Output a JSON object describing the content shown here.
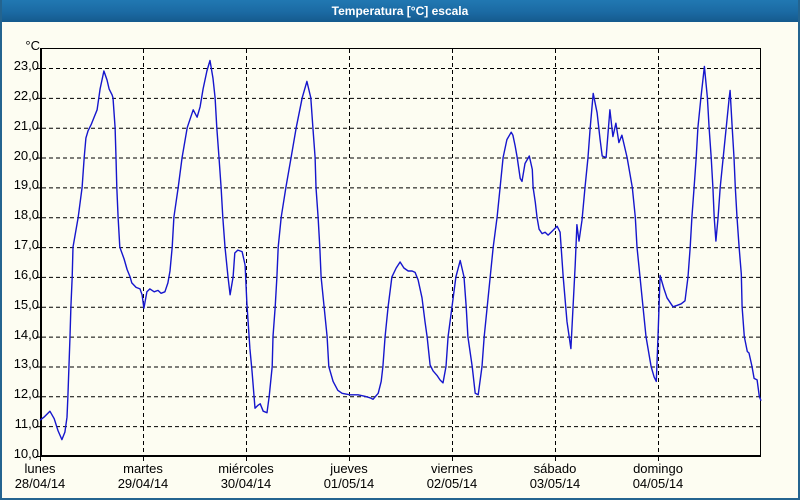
{
  "window": {
    "title": "Temperatura [°C] escala"
  },
  "frame": {
    "border_color": "#24648f",
    "titlebar_color": "#1b6aa3",
    "background_color": "#fdfdf2"
  },
  "chart": {
    "line_color": "#1616cd",
    "grid_color": "#000000",
    "y_axis": {
      "unit_label": "°C",
      "min": 10,
      "max": 23,
      "step": 1,
      "tick_labels": [
        "23,0",
        "22,0",
        "21,0",
        "20,0",
        "19,0",
        "18,0",
        "17,0",
        "16,0",
        "15,0",
        "14,0",
        "13,0",
        "12,0",
        "11,0",
        "10,0"
      ]
    },
    "x_axis": {
      "days": [
        {
          "name": "lunes",
          "date": "28/04/14"
        },
        {
          "name": "martes",
          "date": "29/04/14"
        },
        {
          "name": "miércoles",
          "date": "30/04/14"
        },
        {
          "name": "jueves",
          "date": "01/05/14"
        },
        {
          "name": "viernes",
          "date": "02/05/14"
        },
        {
          "name": "sábado",
          "date": "03/05/14"
        },
        {
          "name": "domingo",
          "date": "04/05/14"
        }
      ]
    }
  },
  "chart_data": {
    "type": "line",
    "title": "Temperatura [°C] escala",
    "ylabel": "°C",
    "ylim": [
      10,
      23
    ],
    "x_unit": "hours since lunes 28/04/14 00:00",
    "xlim": [
      0,
      168
    ],
    "grid": "dashed",
    "legend": "none",
    "x_tick_labels": [
      "lunes 28/04/14",
      "martes 29/04/14",
      "miércoles 30/04/14",
      "jueves 01/05/14",
      "viernes 02/05/14",
      "sábado 03/05/14",
      "domingo 04/05/14"
    ],
    "series": [
      {
        "name": "Temperatura",
        "color": "#1616cd",
        "points": [
          [
            0,
            11.2
          ],
          [
            0.9,
            11.3
          ],
          [
            2.3,
            11.5
          ],
          [
            3.3,
            11.25
          ],
          [
            4.2,
            10.85
          ],
          [
            5.1,
            10.55
          ],
          [
            5.8,
            10.8
          ],
          [
            6.3,
            11.3
          ],
          [
            6.5,
            12
          ],
          [
            7,
            14
          ],
          [
            7.2,
            15
          ],
          [
            7.5,
            16
          ],
          [
            7.7,
            17
          ],
          [
            8.9,
            18
          ],
          [
            9.8,
            19
          ],
          [
            10.3,
            20
          ],
          [
            10.7,
            20.65
          ],
          [
            11.2,
            20.9
          ],
          [
            11.9,
            21.1
          ],
          [
            12.6,
            21.35
          ],
          [
            13.3,
            21.6
          ],
          [
            14,
            22.3
          ],
          [
            14.9,
            22.9
          ],
          [
            15.6,
            22.6
          ],
          [
            16.1,
            22.3
          ],
          [
            16.8,
            22.1
          ],
          [
            17,
            22
          ],
          [
            17.5,
            21
          ],
          [
            17.7,
            20
          ],
          [
            17.9,
            19
          ],
          [
            18.2,
            18
          ],
          [
            18.6,
            17
          ],
          [
            19.6,
            16.6
          ],
          [
            20.3,
            16.25
          ],
          [
            21,
            16
          ],
          [
            21.4,
            15.8
          ],
          [
            22.4,
            15.65
          ],
          [
            23.3,
            15.6
          ],
          [
            23.8,
            15.4
          ],
          [
            24.2,
            14.95
          ],
          [
            24.9,
            15.5
          ],
          [
            25.6,
            15.6
          ],
          [
            26.6,
            15.5
          ],
          [
            27.5,
            15.55
          ],
          [
            28.2,
            15.45
          ],
          [
            29.1,
            15.5
          ],
          [
            29.8,
            15.8
          ],
          [
            30.3,
            16.2
          ],
          [
            30.8,
            17
          ],
          [
            31.2,
            18
          ],
          [
            32.2,
            19
          ],
          [
            33.1,
            20
          ],
          [
            34.3,
            21
          ],
          [
            35.7,
            21.6
          ],
          [
            36.6,
            21.35
          ],
          [
            37.3,
            21.7
          ],
          [
            38,
            22.3
          ],
          [
            38.9,
            22.9
          ],
          [
            39.6,
            23.25
          ],
          [
            40.3,
            22.65
          ],
          [
            40.8,
            22
          ],
          [
            41.2,
            21
          ],
          [
            41.7,
            20
          ],
          [
            42.2,
            19
          ],
          [
            42.6,
            18
          ],
          [
            43.1,
            17
          ],
          [
            43.8,
            16
          ],
          [
            44.3,
            15.4
          ],
          [
            45,
            16
          ],
          [
            45.4,
            16.8
          ],
          [
            46.1,
            16.9
          ],
          [
            47.1,
            16.85
          ],
          [
            47.8,
            16.4
          ],
          [
            48.2,
            15.1
          ],
          [
            48.9,
            13.6
          ],
          [
            49.4,
            12.85
          ],
          [
            50.1,
            11.6
          ],
          [
            50.8,
            11.7
          ],
          [
            51.3,
            11.75
          ],
          [
            52,
            11.5
          ],
          [
            52.9,
            11.45
          ],
          [
            53.4,
            12
          ],
          [
            54.1,
            13
          ],
          [
            54.3,
            14
          ],
          [
            54.8,
            15
          ],
          [
            55.2,
            16
          ],
          [
            55.5,
            17
          ],
          [
            56.2,
            18
          ],
          [
            57.3,
            19
          ],
          [
            58.5,
            20
          ],
          [
            59.7,
            21
          ],
          [
            61.1,
            22
          ],
          [
            62.2,
            22.55
          ],
          [
            63.1,
            22
          ],
          [
            63.6,
            21
          ],
          [
            64.1,
            20
          ],
          [
            64.3,
            19
          ],
          [
            64.8,
            18
          ],
          [
            65.2,
            17
          ],
          [
            65.5,
            16
          ],
          [
            66.2,
            15
          ],
          [
            66.9,
            14
          ],
          [
            67.3,
            13
          ],
          [
            68.3,
            12.5
          ],
          [
            69.4,
            12.2
          ],
          [
            70.4,
            12.1
          ],
          [
            72.2,
            12.05
          ],
          [
            74.1,
            12.05
          ],
          [
            75.7,
            12
          ],
          [
            76.9,
            11.95
          ],
          [
            77.6,
            11.9
          ],
          [
            78.8,
            12.1
          ],
          [
            79.5,
            12.5
          ],
          [
            79.9,
            13
          ],
          [
            80.4,
            14
          ],
          [
            81.1,
            15
          ],
          [
            82,
            16
          ],
          [
            83,
            16.3
          ],
          [
            83.9,
            16.5
          ],
          [
            84.8,
            16.3
          ],
          [
            85.8,
            16.2
          ],
          [
            86.7,
            16.2
          ],
          [
            87.4,
            16.15
          ],
          [
            88.1,
            15.9
          ],
          [
            89,
            15.3
          ],
          [
            89.7,
            14.5
          ],
          [
            90.2,
            14
          ],
          [
            90.9,
            13.05
          ],
          [
            91.6,
            12.85
          ],
          [
            92.5,
            12.7
          ],
          [
            93.2,
            12.55
          ],
          [
            93.9,
            12.45
          ],
          [
            94.6,
            13
          ],
          [
            95.1,
            14
          ],
          [
            96,
            15
          ],
          [
            96.9,
            16
          ],
          [
            97.9,
            16.55
          ],
          [
            98.8,
            16
          ],
          [
            99.3,
            15
          ],
          [
            99.7,
            14
          ],
          [
            100.7,
            13
          ],
          [
            101.4,
            12.1
          ],
          [
            102.1,
            12.05
          ],
          [
            103,
            13
          ],
          [
            103.5,
            14
          ],
          [
            104.2,
            15
          ],
          [
            104.9,
            16
          ],
          [
            105.6,
            17
          ],
          [
            106.5,
            18
          ],
          [
            107.2,
            19
          ],
          [
            107.9,
            20
          ],
          [
            108.8,
            20.6
          ],
          [
            109.8,
            20.85
          ],
          [
            110.2,
            20.75
          ],
          [
            110.7,
            20.4
          ],
          [
            111.2,
            20
          ],
          [
            111.9,
            19.3
          ],
          [
            112.3,
            19.2
          ],
          [
            113,
            19.8
          ],
          [
            114,
            20.05
          ],
          [
            114.7,
            19.6
          ],
          [
            114.9,
            19
          ],
          [
            115.4,
            18.5
          ],
          [
            115.8,
            18
          ],
          [
            116.3,
            17.6
          ],
          [
            117,
            17.45
          ],
          [
            117.7,
            17.5
          ],
          [
            118.4,
            17.4
          ],
          [
            119.1,
            17.5
          ],
          [
            119.8,
            17.6
          ],
          [
            120.5,
            17.7
          ],
          [
            121.2,
            17.5
          ],
          [
            121.9,
            16
          ],
          [
            122.8,
            14.5
          ],
          [
            123.7,
            13.6
          ],
          [
            124.7,
            16.4
          ],
          [
            125.1,
            17.75
          ],
          [
            125.6,
            17.2
          ],
          [
            126.3,
            17.9
          ],
          [
            127,
            19
          ],
          [
            127.7,
            20
          ],
          [
            128.2,
            21
          ],
          [
            128.9,
            22.15
          ],
          [
            129.8,
            21.5
          ],
          [
            130.5,
            20.6
          ],
          [
            131,
            20.05
          ],
          [
            131.9,
            20
          ],
          [
            132.8,
            21.6
          ],
          [
            133.5,
            20.7
          ],
          [
            134.2,
            21.15
          ],
          [
            134.9,
            20.5
          ],
          [
            135.6,
            20.75
          ],
          [
            136.8,
            20
          ],
          [
            138,
            19
          ],
          [
            138.7,
            18
          ],
          [
            139.1,
            17
          ],
          [
            139.8,
            16
          ],
          [
            140.5,
            15
          ],
          [
            141.2,
            14
          ],
          [
            142.4,
            13
          ],
          [
            143.1,
            12.65
          ],
          [
            143.6,
            12.5
          ],
          [
            144,
            14
          ],
          [
            144.5,
            16.05
          ],
          [
            145.4,
            15.6
          ],
          [
            146.1,
            15.3
          ],
          [
            146.8,
            15.15
          ],
          [
            147.5,
            15
          ],
          [
            148.5,
            15.05
          ],
          [
            149.4,
            15.1
          ],
          [
            150.3,
            15.2
          ],
          [
            151,
            16
          ],
          [
            151.5,
            17
          ],
          [
            151.9,
            18
          ],
          [
            152.4,
            19
          ],
          [
            152.9,
            20
          ],
          [
            153.3,
            21
          ],
          [
            154,
            22
          ],
          [
            154.8,
            23.05
          ],
          [
            155.5,
            22
          ],
          [
            155.9,
            21
          ],
          [
            156.4,
            20
          ],
          [
            156.8,
            19
          ],
          [
            157.1,
            18
          ],
          [
            157.5,
            17.2
          ],
          [
            158,
            18
          ],
          [
            158.5,
            19
          ],
          [
            159.2,
            20
          ],
          [
            159.9,
            21
          ],
          [
            160.6,
            22
          ],
          [
            160.8,
            22.25
          ],
          [
            161.3,
            21
          ],
          [
            161.7,
            20
          ],
          [
            162,
            19
          ],
          [
            162.4,
            18
          ],
          [
            162.9,
            17
          ],
          [
            163.4,
            16.1
          ],
          [
            163.6,
            15
          ],
          [
            164.1,
            14
          ],
          [
            164.8,
            13.5
          ],
          [
            165.2,
            13.45
          ],
          [
            165.9,
            13
          ],
          [
            166.4,
            12.6
          ],
          [
            167.1,
            12.55
          ],
          [
            167.6,
            12
          ],
          [
            168,
            11.85
          ]
        ]
      }
    ]
  }
}
